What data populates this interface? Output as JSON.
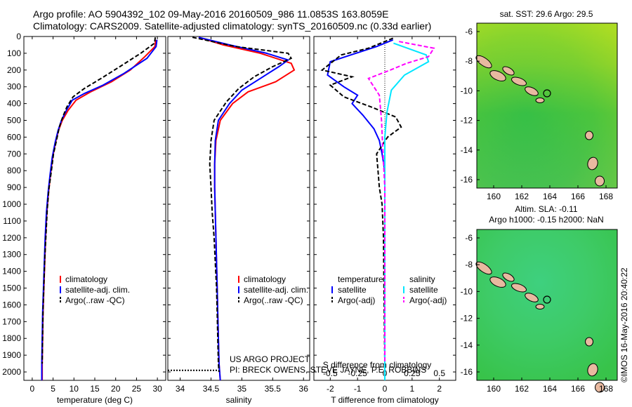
{
  "title_line1": "Argo profile: AO 5904392_102 09-May-2016 20160509_986 11.0853S 163.8059E",
  "title_line2": "Climatology: CARS2009. Satellite-adjusted climatology: synTS_20160509.nc (0.33d earlier)",
  "colors": {
    "climatology": "#ff0000",
    "satellite": "#0000ff",
    "argo": "#000000",
    "sal_sat": "#00e6ff",
    "sal_argo": "#ff00ff"
  },
  "panel_temp": {
    "xlabel": "temperature (deg C)",
    "xticks": [
      "0",
      "5",
      "10",
      "15",
      "20",
      "25",
      "30"
    ],
    "legend": [
      "climatology",
      "satellite-adj. clim.",
      "Argo(..raw -QC)"
    ]
  },
  "panel_sal": {
    "xlabel": "salinity",
    "xticks": [
      "34",
      "34.5",
      "35",
      "35.5",
      "36"
    ],
    "legend": [
      "climatology",
      "satellite-adj. clim.",
      "Argo(..raw -QC)"
    ],
    "footer1": "US ARGO PROJECT",
    "footer2": "PI: BRECK OWENS, STEVE JAYNE, P.E. ROBBINS"
  },
  "panel_diff": {
    "xlabel": "T difference from climatology",
    "top_axis_label": "S difference from climatology",
    "xticks_bottom": [
      "-2",
      "-1",
      "0",
      "1",
      "2"
    ],
    "xticks_top": [
      "-0.5",
      "-0.25",
      "0",
      "0.25",
      "0.5"
    ],
    "legend_hdr_t": "temperature",
    "legend_hdr_s": "salinity",
    "legend_t": [
      "satellite",
      "Argo(-adj)"
    ],
    "legend_s": [
      "satellite",
      "Argo(-adj)"
    ]
  },
  "depth_ticks": [
    "0",
    "100",
    "200",
    "300",
    "400",
    "500",
    "600",
    "700",
    "800",
    "900",
    "1000",
    "1100",
    "1200",
    "1300",
    "1400",
    "1500",
    "1600",
    "1700",
    "1800",
    "1900",
    "2000"
  ],
  "map_sst": {
    "title": "sat. SST: 29.6 Argo: 29.5",
    "yticks": [
      "-6",
      "-8",
      "-10",
      "-12",
      "-14",
      "-16"
    ],
    "xticks": [
      "160",
      "162",
      "164",
      "166",
      "168"
    ]
  },
  "map_sla": {
    "title1": "Altim. SLA: -0.11",
    "title2": "Argo h1000: -0.15 h2000: NaN",
    "yticks": [
      "-6",
      "-8",
      "-10",
      "-12",
      "-14",
      "-16"
    ],
    "xticks": [
      "160",
      "162",
      "164",
      "166",
      "168"
    ]
  },
  "watermark": "©IMOS 16-May-2016 20:40:22",
  "chart_data": [
    {
      "type": "line",
      "xlabel": "temperature (deg C)",
      "ylabel": "",
      "xlim": [
        -2,
        32
      ],
      "ylim": [
        2050,
        0
      ],
      "series": [
        {
          "name": "climatology",
          "x": [
            29.6,
            29.4,
            27,
            23.5,
            19,
            14,
            10.5,
            8.6,
            7.2,
            6.3,
            5.6,
            4.9,
            4.4,
            3.9,
            3.5,
            3.2,
            3.0,
            2.8,
            2.6,
            2.5,
            2.4,
            2.4
          ],
          "y": [
            20,
            60,
            120,
            200,
            270,
            330,
            380,
            440,
            500,
            560,
            630,
            720,
            820,
            930,
            1050,
            1200,
            1350,
            1500,
            1650,
            1800,
            1950,
            2050
          ]
        },
        {
          "name": "satellite-adj. clim.",
          "x": [
            29.9,
            29.7,
            27.5,
            22,
            17,
            12.5,
            9.6,
            8.2,
            7.0,
            6.2,
            5.5,
            4.8,
            4.3,
            3.8,
            3.4,
            3.1,
            2.9,
            2.7,
            2.5,
            2.4,
            2.3,
            2.3
          ],
          "y": [
            20,
            60,
            130,
            220,
            290,
            340,
            380,
            440,
            500,
            560,
            630,
            720,
            820,
            930,
            1050,
            1200,
            1350,
            1500,
            1650,
            1800,
            1950,
            2050
          ]
        },
        {
          "name": "Argo(..raw -QC)",
          "x": [
            29.5,
            29.3,
            26,
            21,
            16.5,
            12.5,
            9.8,
            8.3,
            7.3,
            6.5,
            5.9,
            5.1,
            4.6,
            4.0,
            3.6,
            3.3,
            3.0,
            2.8,
            2.6,
            2.5,
            2.4
          ],
          "y": [
            5,
            40,
            100,
            180,
            250,
            310,
            360,
            420,
            480,
            540,
            610,
            700,
            800,
            910,
            1030,
            1180,
            1330,
            1480,
            1630,
            1780,
            1950
          ]
        }
      ]
    },
    {
      "type": "line",
      "xlabel": "salinity",
      "xlim": [
        33.8,
        36.1
      ],
      "ylim": [
        2050,
        0
      ],
      "series": [
        {
          "name": "climatology",
          "x": [
            34.3,
            34.7,
            35.3,
            35.8,
            35.85,
            35.55,
            35.1,
            34.85,
            34.65,
            34.58,
            34.56,
            34.56,
            34.57,
            34.58,
            34.59,
            34.6,
            34.61,
            34.62,
            34.63,
            34.64,
            34.65
          ],
          "y": [
            5,
            50,
            100,
            160,
            200,
            270,
            330,
            400,
            500,
            620,
            760,
            900,
            1050,
            1200,
            1350,
            1500,
            1650,
            1800,
            1950,
            2000,
            2050
          ]
        },
        {
          "name": "satellite-adj. clim.",
          "x": [
            34.3,
            34.8,
            35.4,
            35.75,
            35.6,
            35.3,
            35.0,
            34.8,
            34.62,
            34.57,
            34.56,
            34.56,
            34.57,
            34.58,
            34.59,
            34.6,
            34.61,
            34.62,
            34.63,
            34.64,
            34.65
          ],
          "y": [
            5,
            50,
            100,
            140,
            180,
            250,
            320,
            400,
            500,
            620,
            760,
            900,
            1050,
            1200,
            1350,
            1500,
            1650,
            1800,
            1950,
            2000,
            2050
          ]
        },
        {
          "name": "Argo(..raw -QC)",
          "x": [
            34.2,
            34.9,
            35.75,
            35.8,
            35.5,
            35.2,
            34.95,
            34.75,
            34.55,
            34.5,
            34.48,
            34.5,
            34.52,
            34.55,
            34.57,
            34.59,
            34.6,
            34.61,
            34.62,
            34.63
          ],
          "y": [
            5,
            60,
            100,
            130,
            180,
            240,
            310,
            390,
            500,
            620,
            760,
            900,
            1050,
            1200,
            1350,
            1500,
            1650,
            1800,
            1950,
            2000
          ]
        },
        {
          "name": "",
          "x": [
            33.8,
            34.63
          ],
          "y": [
            1990,
            1990
          ]
        }
      ]
    },
    {
      "type": "line",
      "xlabel": "T difference from climatology",
      "xlim": [
        -2.6,
        2.6
      ],
      "ylim": [
        2050,
        0
      ],
      "x2label": "S difference from climatology",
      "x2lim": [
        -0.65,
        0.65
      ],
      "series": [
        {
          "name": "temperature satellite",
          "x": [
            0.3,
            -0.3,
            -2.0,
            -2.1,
            -1.5,
            -1.0,
            -1.2,
            -0.8,
            -0.4,
            -0.2,
            -0.1,
            0,
            0,
            0,
            0,
            0,
            0,
            0
          ],
          "y": [
            20,
            60,
            150,
            230,
            300,
            350,
            400,
            470,
            550,
            620,
            700,
            800,
            1000,
            1200,
            1400,
            1600,
            1800,
            2050
          ]
        },
        {
          "name": "temperature Argo(-adj)",
          "x": [
            0.3,
            -0.6,
            -1.6,
            -2.3,
            -1.2,
            -2.0,
            -1.5,
            -0.5,
            0.4,
            0.6,
            0.1,
            -0.3,
            -0.25,
            -0.2,
            -0.1,
            -0.05,
            -0.03,
            0
          ],
          "y": [
            10,
            70,
            110,
            200,
            240,
            290,
            360,
            420,
            480,
            540,
            600,
            700,
            800,
            900,
            1000,
            1200,
            1500,
            1950
          ]
        },
        {
          "name": "salinity satellite",
          "x": [
            0.08,
            0.38,
            0.4,
            0.18,
            0.06,
            0.02,
            0,
            0,
            0,
            0,
            0,
            0,
            0
          ],
          "y": [
            40,
            110,
            150,
            230,
            320,
            450,
            600,
            750,
            1000,
            1300,
            1600,
            1900,
            2050
          ]
        },
        {
          "name": "salinity Argo(-adj)",
          "x": [
            0.13,
            0.45,
            0.4,
            0.2,
            0.05,
            -0.15,
            -0.05,
            -0.03,
            -0.02,
            0,
            0,
            0
          ],
          "y": [
            30,
            70,
            120,
            160,
            200,
            250,
            350,
            500,
            650,
            900,
            1300,
            1950
          ]
        }
      ]
    }
  ]
}
